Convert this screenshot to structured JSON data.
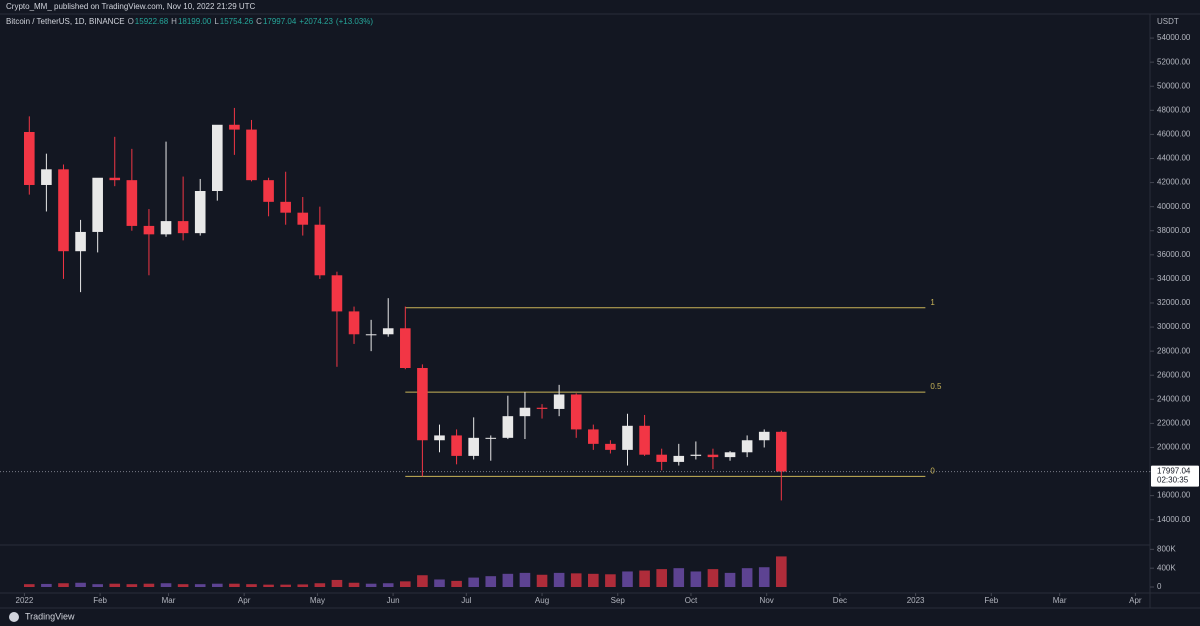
{
  "header": {
    "publisher": "Crypto_MM_ published on TradingView.com, Nov 10, 2022 21:29 UTC",
    "brand": "TradingView"
  },
  "chart_data": {
    "type": "candlestick",
    "legend": {
      "symbol": "Bitcoin / TetherUS, 1D, BINANCE",
      "open_label": "O",
      "open": 15922.68,
      "high_label": "H",
      "high": {
        "value": 18199,
        "label": "18199.00"
      },
      "low_label": "L",
      "low": 15754.26,
      "close_label": "C",
      "close": 17997.04,
      "change": {
        "value": 2074.23,
        "label": "+2074.23"
      },
      "change_pct": {
        "value": 13.03,
        "label": "(+13.03%)"
      }
    },
    "currency": "USDT",
    "x": [
      2,
      9,
      16,
      23,
      30,
      37,
      44,
      51,
      58,
      65,
      72,
      79,
      86,
      93,
      100,
      107,
      114,
      121,
      128,
      135,
      142,
      149,
      156,
      163,
      170,
      177,
      184,
      191,
      198,
      205,
      212,
      219,
      226,
      233,
      240,
      247,
      254,
      261,
      268,
      275,
      282,
      289,
      296,
      303,
      310
    ],
    "open": [
      46200,
      41800,
      43100,
      36300,
      37900,
      42400,
      42200,
      38400,
      37700,
      38800,
      37800,
      41300,
      46800,
      46400,
      42200,
      40400,
      39500,
      38500,
      34300,
      31300,
      29400,
      29400,
      29900,
      26600,
      20600,
      21000,
      19300,
      20800,
      20800,
      22600,
      23300,
      23200,
      24400,
      21500,
      20300,
      19800,
      21800,
      19400,
      18800,
      19300,
      19400,
      19200,
      19600,
      20600,
      21300
    ],
    "high": [
      47500,
      44400,
      43500,
      38900,
      42000,
      45800,
      44800,
      39800,
      45400,
      42500,
      42300,
      46700,
      48200,
      47200,
      42400,
      42900,
      40800,
      40000,
      34600,
      31700,
      30600,
      32400,
      31700,
      26900,
      21900,
      21500,
      22500,
      21000,
      24300,
      24600,
      23600,
      25200,
      24500,
      21900,
      20600,
      22800,
      22700,
      19900,
      20300,
      20500,
      19900,
      19700,
      21000,
      21500,
      21400
    ],
    "low": [
      41000,
      39600,
      34000,
      32900,
      36200,
      41700,
      38000,
      34300,
      37500,
      37200,
      37600,
      40500,
      44300,
      42100,
      39200,
      38500,
      37600,
      34000,
      26700,
      28600,
      28000,
      29200,
      26500,
      17600,
      19600,
      18600,
      19000,
      18900,
      20700,
      20700,
      22400,
      22600,
      20800,
      19800,
      19500,
      18500,
      19300,
      18100,
      18500,
      19000,
      18200,
      18900,
      19200,
      20000,
      15600
    ],
    "close": [
      41800,
      43100,
      36300,
      37900,
      42400,
      42200,
      38400,
      37700,
      38800,
      37800,
      41300,
      46800,
      46400,
      42200,
      40400,
      39500,
      38500,
      34300,
      31300,
      29400,
      29400,
      29900,
      26600,
      20600,
      21000,
      19300,
      20800,
      20800,
      22600,
      23300,
      23200,
      24400,
      21500,
      20300,
      19800,
      21800,
      19400,
      18800,
      19300,
      19400,
      19200,
      19600,
      20600,
      21300,
      18000
    ],
    "volume": [
      60000,
      65000,
      80000,
      90000,
      60000,
      70000,
      60000,
      70000,
      80000,
      60000,
      60000,
      70000,
      70000,
      60000,
      50000,
      50000,
      55000,
      80000,
      150000,
      90000,
      70000,
      80000,
      120000,
      250000,
      160000,
      130000,
      200000,
      230000,
      280000,
      300000,
      260000,
      300000,
      290000,
      280000,
      270000,
      330000,
      350000,
      380000,
      400000,
      330000,
      380000,
      300000,
      400000,
      420000,
      650000
    ],
    "up_color": "#e8e8e8",
    "down_color": "#f23645",
    "volume_up_color": "#7e57c2",
    "volume_down_color": "#f23645",
    "xlim": [
      -10,
      461
    ],
    "xticks": [
      {
        "value": 0,
        "label": "2022"
      },
      {
        "value": 31,
        "label": "Feb"
      },
      {
        "value": 59,
        "label": "Mar"
      },
      {
        "value": 90,
        "label": "Apr"
      },
      {
        "value": 120,
        "label": "May"
      },
      {
        "value": 151,
        "label": "Jun"
      },
      {
        "value": 181,
        "label": "Jul"
      },
      {
        "value": 212,
        "label": "Aug"
      },
      {
        "value": 243,
        "label": "Sep"
      },
      {
        "value": 273,
        "label": "Oct"
      },
      {
        "value": 304,
        "label": "Nov"
      },
      {
        "value": 334,
        "label": "Dec"
      },
      {
        "value": 365,
        "label": "2023"
      },
      {
        "value": 396,
        "label": "Feb"
      },
      {
        "value": 424,
        "label": "Mar"
      },
      {
        "value": 455,
        "label": "Apr"
      }
    ],
    "ylim": [
      11900,
      56000
    ],
    "yticks": [
      {
        "value": 14000,
        "label": "14000.00"
      },
      {
        "value": 16000,
        "label": "16000.00"
      },
      {
        "value": 18000,
        "label": "18000.00"
      },
      {
        "value": 20000,
        "label": "20000.00"
      },
      {
        "value": 22000,
        "label": "22000.00"
      },
      {
        "value": 24000,
        "label": "24000.00"
      },
      {
        "value": 26000,
        "label": "26000.00"
      },
      {
        "value": 28000,
        "label": "28000.00"
      },
      {
        "value": 30000,
        "label": "30000.00"
      },
      {
        "value": 32000,
        "label": "32000.00"
      },
      {
        "value": 34000,
        "label": "34000.00"
      },
      {
        "value": 36000,
        "label": "36000.00"
      },
      {
        "value": 38000,
        "label": "38000.00"
      },
      {
        "value": 40000,
        "label": "40000.00"
      },
      {
        "value": 42000,
        "label": "42000.00"
      },
      {
        "value": 44000,
        "label": "44000.00"
      },
      {
        "value": 46000,
        "label": "46000.00"
      },
      {
        "value": 48000,
        "label": "48000.00"
      },
      {
        "value": 50000,
        "label": "50000.00"
      },
      {
        "value": 52000,
        "label": "52000.00"
      },
      {
        "value": 54000,
        "label": "54000.00"
      }
    ],
    "volume_ylim": [
      0,
      850000
    ],
    "volume_ticks": [
      0,
      {
        "value": 400000,
        "label": "400K"
      },
      {
        "value": 800000,
        "label": "800K"
      }
    ],
    "last_price": {
      "value": 17997.04,
      "label": "17997.04"
    },
    "countdown": "02:30:35",
    "fib_x": [
      156,
      369
    ],
    "fib_levels": [
      1,
      0.5,
      0
    ],
    "fib_prices": [
      31600,
      24600,
      17600
    ],
    "fib_color": "#c9b458"
  }
}
